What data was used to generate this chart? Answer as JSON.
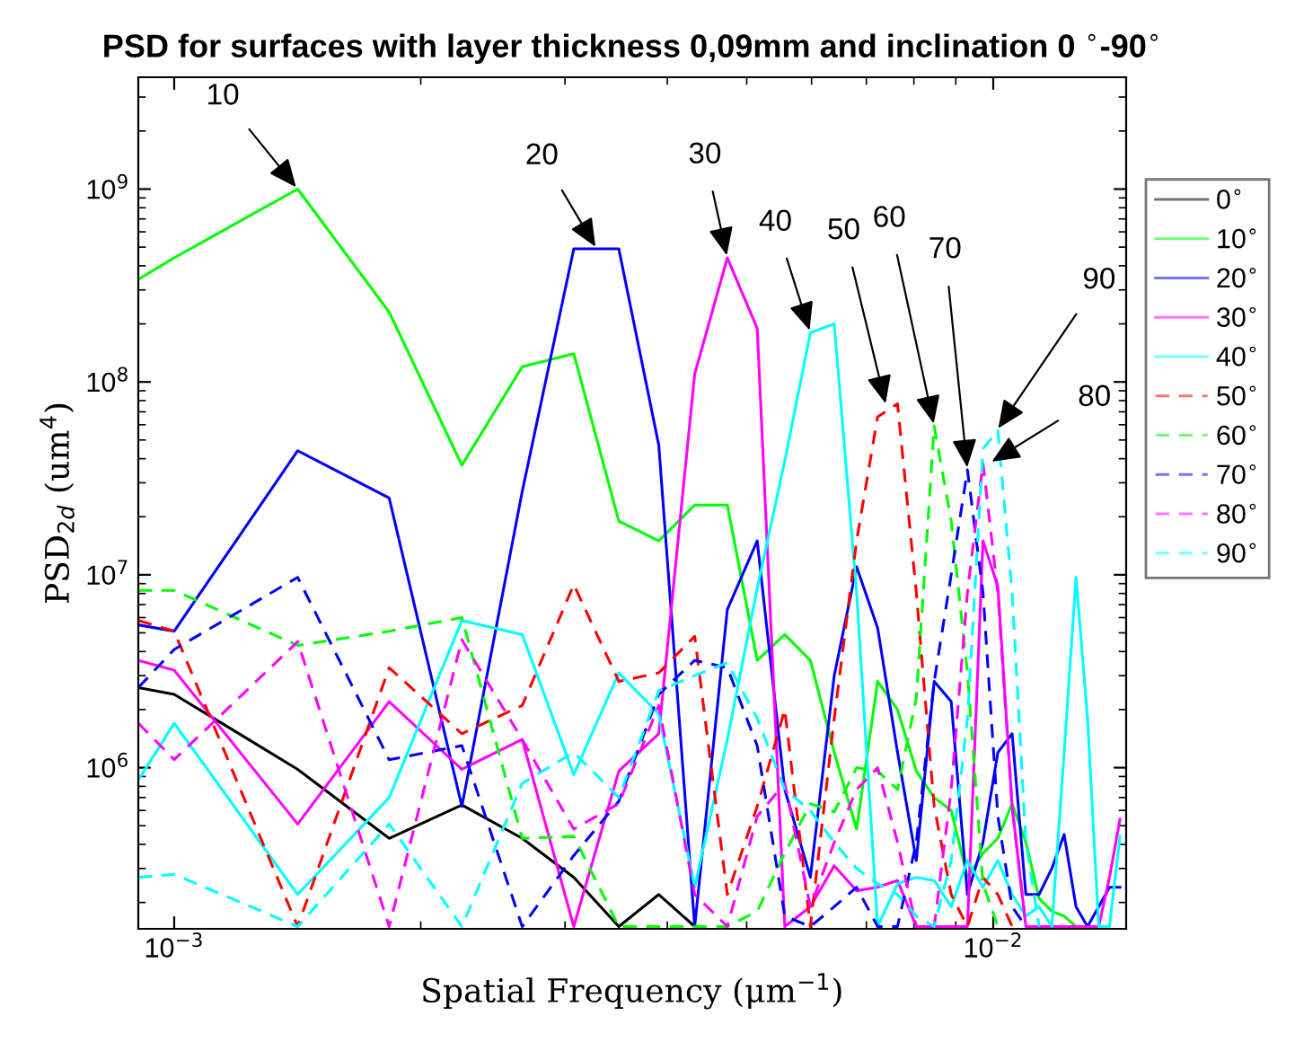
{
  "chart_data": {
    "type": "line",
    "title": "PSD for surfaces with layer thickness 0,09mm and inclination 0 $^{∘}$-90$^{∘}$",
    "xlabel": "Spatial Frequency (μm$^{−1}$)",
    "ylabel": "PSD$_{2d}$ (um$^{4}$)",
    "log": "xy",
    "grid": false,
    "legend": "right",
    "xlim": [
      0.000904,
      0.01453
    ],
    "ylim": [
      146000,
      3800000000
    ],
    "xticks": [
      {
        "value": 0.001,
        "label": "10$^{−3}$"
      },
      {
        "value": 0.01,
        "label": "10$^{−2}$"
      }
    ],
    "yticks": [
      {
        "value": 1000000,
        "label": "10$^{6}$"
      },
      {
        "value": 10000000,
        "label": "10$^{7}$"
      },
      {
        "value": 100000000,
        "label": "10$^{8}$"
      },
      {
        "value": 1000000000,
        "label": "10$^{9}$"
      }
    ],
    "x": [
      0.000904,
      0.001,
      0.001415,
      0.00183,
      0.002245,
      0.00266,
      0.003075,
      0.00349,
      0.003905,
      0.00432,
      0.004735,
      0.00515,
      0.005565,
      0.00598,
      0.006395,
      0.00681,
      0.007225,
      0.00764,
      0.008055,
      0.00847,
      0.008885,
      0.0093,
      0.009715,
      0.01013,
      0.010545,
      0.01096,
      0.011375,
      0.01179,
      0.012205,
      0.01262,
      0.013035,
      0.01345,
      0.013865,
      0.01428
    ],
    "series": [
      {
        "name": "0$^{∘}$",
        "color": "#000000",
        "line_style": "solid",
        "values": [
          2600000.0,
          2400000.0,
          980000.0,
          430000.0,
          640000.0,
          430000.0,
          270000.0,
          150000.0,
          220000.0,
          150000.0,
          null,
          null,
          null,
          null,
          null,
          null,
          null,
          null,
          null,
          null,
          null,
          null,
          null,
          null,
          null,
          null,
          null,
          null,
          null,
          null,
          null,
          null,
          null,
          null
        ]
      },
      {
        "name": "10$^{∘}$",
        "color": "#00ff00",
        "line_style": "solid",
        "values": [
          340000000.0,
          440000000.0,
          1000000000.0,
          230000000.0,
          37000000.0,
          120000000.0,
          140000000.0,
          19000000.0,
          15000000.0,
          23000000.0,
          23000000.0,
          3600000.0,
          4900000.0,
          3600000.0,
          1200000.0,
          480000.0,
          2800000.0,
          2000000.0,
          960000.0,
          700000.0,
          600000.0,
          270000.0,
          360000.0,
          430000.0,
          650000.0,
          410000.0,
          210000.0,
          180000.0,
          170000.0,
          150000.0,
          null,
          null,
          null,
          null
        ]
      },
      {
        "name": "20$^{∘}$",
        "color": "#0000ff",
        "line_style": "solid",
        "values": [
          5500000.0,
          5100000.0,
          44000000.0,
          25000000.0,
          630000.0,
          27000000.0,
          490000000.0,
          490000000.0,
          47000000.0,
          150000.0,
          6600000.0,
          15000000.0,
          770000.0,
          270000.0,
          3000000.0,
          11000000.0,
          5300000.0,
          1200000.0,
          330000.0,
          2800000.0,
          2200000.0,
          220000.0,
          410000.0,
          1200000.0,
          1500000.0,
          220000.0,
          220000.0,
          300000.0,
          450000.0,
          190000.0,
          150000.0,
          190000.0,
          240000.0,
          240000.0
        ]
      },
      {
        "name": "30$^{∘}$",
        "color": "#ff00ff",
        "line_style": "solid",
        "values": [
          3600000.0,
          3200000.0,
          510000.0,
          2200000.0,
          980000.0,
          1400000.0,
          150000.0,
          960000.0,
          1500000.0,
          110000000.0,
          440000000.0,
          190000000.0,
          150000.0,
          190000.0,
          310000.0,
          230000.0,
          240000.0,
          260000.0,
          150000.0,
          150000.0,
          150000.0,
          150000.0,
          15000000.0,
          8700000.0,
          630000.0,
          150000.0,
          150000.0,
          150000.0,
          150000.0,
          150000.0,
          150000.0,
          150000.0,
          270000.0,
          540000.0
        ]
      },
      {
        "name": "40$^{∘}$",
        "color": "#00ffff",
        "line_style": "solid",
        "values": [
          860000.0,
          1700000.0,
          220000.0,
          700000.0,
          5800000.0,
          4900000.0,
          920000.0,
          3100000.0,
          1900000.0,
          240000.0,
          1400000.0,
          8500000.0,
          39000000.0,
          180000000.0,
          200000000.0,
          8100000.0,
          150000.0,
          250000.0,
          270000.0,
          260000.0,
          190000.0,
          330000.0,
          240000.0,
          330000.0,
          220000.0,
          170000.0,
          190000.0,
          150000.0,
          1200000.0,
          9700000.0,
          1800000.0,
          150000.0,
          150000.0,
          440000.0
        ]
      },
      {
        "name": "50$^{∘}$",
        "color": "#ff0000",
        "line_style": "dashed",
        "values": [
          5800000.0,
          5100000.0,
          150000.0,
          3300000.0,
          1500000.0,
          2100000.0,
          8900000.0,
          2800000.0,
          3100000.0,
          4800000.0,
          220000.0,
          630000.0,
          2000000.0,
          150000.0,
          1800000.0,
          15000000.0,
          66000000.0,
          77000000.0,
          8100000.0,
          630000.0,
          220000.0,
          150000.0,
          270000.0,
          220000.0,
          150000.0,
          null,
          null,
          null,
          null,
          null,
          null,
          null,
          null,
          null
        ]
      },
      {
        "name": "60$^{∘}$",
        "color": "#00ff00",
        "line_style": "dashed",
        "values": [
          8300000.0,
          8300000.0,
          4300000.0,
          5100000.0,
          6000000.0,
          430000.0,
          440000.0,
          150000.0,
          150000.0,
          150000.0,
          150000.0,
          180000.0,
          360000.0,
          650000.0,
          590000.0,
          1000000.0,
          960000.0,
          770000.0,
          2300000.0,
          59000000.0,
          19000000.0,
          3100000.0,
          250000.0,
          150000.0,
          null,
          null,
          null,
          null,
          null,
          null,
          null,
          null,
          null,
          null
        ]
      },
      {
        "name": "70$^{∘}$",
        "color": "#0000ff",
        "line_style": "dashed",
        "values": [
          2600000.0,
          4100000.0,
          9700000.0,
          1100000.0,
          1300000.0,
          150000.0,
          350000.0,
          670000.0,
          2400000.0,
          3600000.0,
          3300000.0,
          1300000.0,
          170000.0,
          150000.0,
          190000.0,
          240000.0,
          150000.0,
          150000.0,
          410000.0,
          2800000.0,
          10000000.0,
          35000000.0,
          8100000.0,
          560000.0,
          190000.0,
          150000.0,
          null,
          null,
          null,
          null,
          null,
          null,
          null,
          null
        ]
      },
      {
        "name": "80$^{∘}$",
        "color": "#ff00ff",
        "line_style": "dashed",
        "values": [
          1700000.0,
          1100000.0,
          4500000.0,
          150000.0,
          4600000.0,
          1400000.0,
          480000.0,
          650000.0,
          2100000.0,
          220000.0,
          150000.0,
          560000.0,
          830000.0,
          190000.0,
          410000.0,
          770000.0,
          1000000.0,
          410000.0,
          150000.0,
          150000.0,
          770000.0,
          8100000.0,
          38000000.0,
          8100000.0,
          630000.0,
          150000.0,
          null,
          null,
          null,
          null,
          null,
          null,
          null,
          null
        ]
      },
      {
        "name": "90$^{∘}$",
        "color": "#00ffff",
        "line_style": "dashed",
        "values": [
          270000.0,
          280000.0,
          150000.0,
          510000.0,
          150000.0,
          830000.0,
          1200000.0,
          700000.0,
          2500000.0,
          3000000.0,
          3500000.0,
          1800000.0,
          770000.0,
          600000.0,
          410000.0,
          300000.0,
          250000.0,
          220000.0,
          170000.0,
          150000.0,
          330000.0,
          1800000.0,
          45000000.0,
          56000000.0,
          8100000.0,
          410000.0,
          150000.0,
          null,
          null,
          null,
          null,
          null,
          null,
          null
        ]
      }
    ],
    "annotations": [
      {
        "text": "10",
        "x": 0.001415,
        "y": 1000000000.0
      },
      {
        "text": "20",
        "x": 0.00328,
        "y": 490000000.0
      },
      {
        "text": "30",
        "x": 0.004735,
        "y": 440000000.0
      },
      {
        "text": "40",
        "x": 0.00598,
        "y": 180000000.0
      },
      {
        "text": "50",
        "x": 0.0074,
        "y": 75000000.0
      },
      {
        "text": "60",
        "x": 0.00847,
        "y": 59000000.0
      },
      {
        "text": "70",
        "x": 0.0093,
        "y": 35000000.0
      },
      {
        "text": "90",
        "x": 0.0101,
        "y": 56000000.0
      },
      {
        "text": "80",
        "x": 0.0099,
        "y": 38000000.0
      }
    ]
  }
}
